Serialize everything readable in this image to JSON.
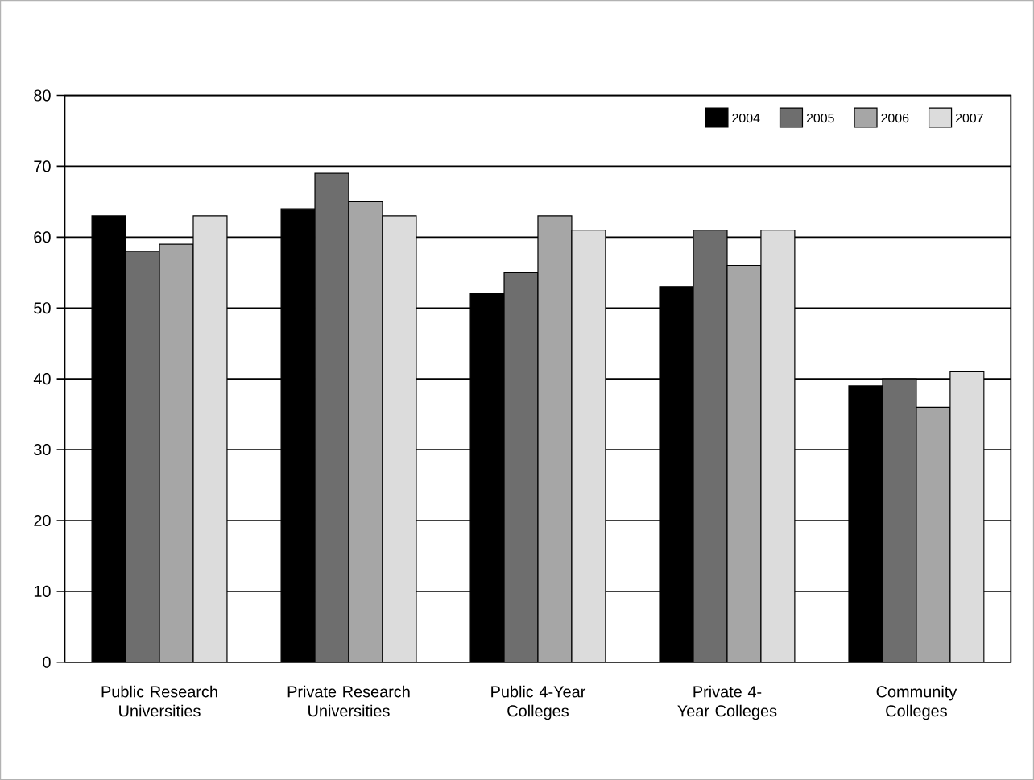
{
  "chart_data": {
    "type": "bar",
    "categories": [
      "Public Research Universities",
      "Private Research Universities",
      "Public 4-Year Colleges",
      "Private 4-Year Colleges",
      "Community Colleges"
    ],
    "series": [
      {
        "name": "2004",
        "color": "#000000",
        "values": [
          63,
          64,
          52,
          53,
          39
        ]
      },
      {
        "name": "2005",
        "color": "#6e6e6e",
        "values": [
          58,
          69,
          55,
          61,
          40
        ]
      },
      {
        "name": "2006",
        "color": "#a6a6a6",
        "values": [
          59,
          65,
          63,
          56,
          36
        ]
      },
      {
        "name": "2007",
        "color": "#dcdcdc",
        "values": [
          63,
          63,
          61,
          61,
          41
        ]
      }
    ],
    "ylim": [
      0,
      80
    ],
    "yticks": [
      0,
      10,
      20,
      30,
      40,
      50,
      60,
      70,
      80
    ],
    "grid": "y",
    "legend": "top right"
  }
}
